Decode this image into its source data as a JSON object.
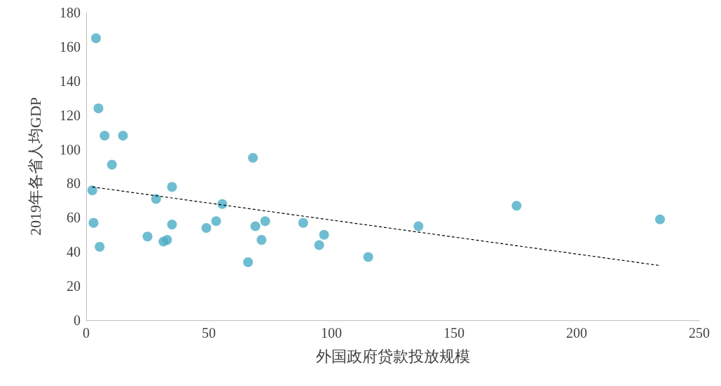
{
  "chart_data": {
    "type": "scatter",
    "xlabel": "外国政府贷款投放规模",
    "ylabel": "2019年各省人均GDP",
    "xlim": [
      0,
      250
    ],
    "xticks": [
      0,
      50,
      100,
      150,
      200,
      250
    ],
    "ylim": [
      0,
      180
    ],
    "yticks": [
      0,
      20,
      40,
      60,
      80,
      100,
      120,
      140,
      160,
      180
    ],
    "marker": "circle",
    "series": [
      {
        "color": "#4bacc6",
        "x": [
          4,
          5,
          7.5,
          15,
          10.5,
          2.5,
          3,
          5.5,
          68,
          35,
          28.5,
          55.5,
          35,
          49,
          53,
          25,
          31.5,
          33,
          69,
          73,
          71.5,
          66,
          88.5,
          95,
          97,
          115,
          135.5,
          175.5,
          234
        ],
        "values": [
          165,
          124,
          108,
          108,
          91,
          76,
          57,
          43,
          95,
          78,
          71,
          68,
          56,
          54,
          58,
          49,
          46,
          47,
          55,
          58,
          47,
          34,
          57,
          44,
          50,
          37,
          55,
          67,
          59
        ]
      },
      {
        "type": "line",
        "color": "#000000",
        "line_style": "dashed",
        "marker": "none",
        "x": [
          2.5,
          234
        ],
        "values": [
          78,
          32
        ]
      }
    ]
  }
}
